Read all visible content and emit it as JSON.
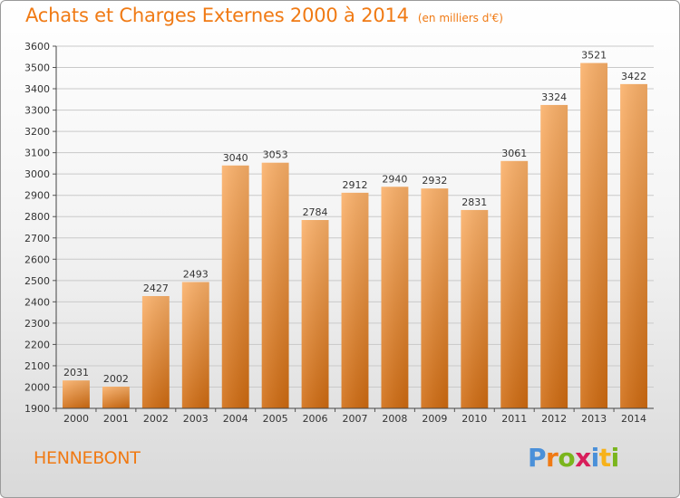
{
  "title": "Achats et Charges Externes 2000 à 2014",
  "subtitle": "(en milliers d'€)",
  "city": "HENNEBONT",
  "logo": {
    "letters": [
      "P",
      "r",
      "o",
      "x",
      "i",
      "t",
      "i"
    ],
    "colors": [
      "#4a90d9",
      "#f07a14",
      "#7ab51d",
      "#d81e5b",
      "#4a90d9",
      "#f7b21a",
      "#7ab51d"
    ]
  },
  "colors": {
    "accent": "#f07a14",
    "bar_light": "#f9a85a",
    "bar_dark": "#d26d12",
    "grid": "#c8c8c8"
  },
  "chart_data": {
    "type": "bar",
    "title": "Achats et Charges Externes 2000 à 2014",
    "subtitle": "(en milliers d'€)",
    "categories": [
      "2000",
      "2001",
      "2002",
      "2003",
      "2004",
      "2005",
      "2006",
      "2007",
      "2008",
      "2009",
      "2010",
      "2011",
      "2012",
      "2013",
      "2014"
    ],
    "values": [
      2031,
      2002,
      2427,
      2493,
      3040,
      3053,
      2784,
      2912,
      2940,
      2932,
      2831,
      3061,
      3324,
      3521,
      3422
    ],
    "ylim": [
      1900,
      3600
    ],
    "ytick_step": 100,
    "grid": true,
    "data_labels": true
  }
}
